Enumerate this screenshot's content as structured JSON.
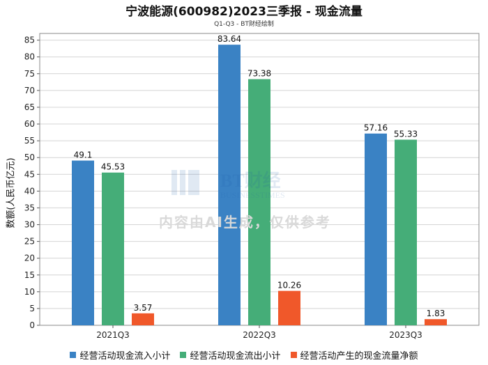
{
  "chart_data": {
    "type": "bar",
    "title": "宁波能源(600982)2023三季报 - 现金流量",
    "subtitle": "Q1-Q3 - BT财经绘制",
    "ylabel": "数额(人民币亿元)",
    "xlabel": "",
    "ylim": [
      0,
      87
    ],
    "yticks": [
      0,
      5,
      10,
      15,
      20,
      25,
      30,
      35,
      40,
      45,
      50,
      55,
      60,
      65,
      70,
      75,
      80,
      85
    ],
    "grid": true,
    "legend_position": "bottom",
    "categories": [
      "2021Q3",
      "2022Q3",
      "2023Q3"
    ],
    "series": [
      {
        "name": "经营活动现金流入小计",
        "color": "#3a82c4",
        "values": [
          49.1,
          83.64,
          57.16
        ],
        "labels": [
          "49.1",
          "83.64",
          "57.16"
        ]
      },
      {
        "name": "经营活动现金流出小计",
        "color": "#45ad78",
        "values": [
          45.53,
          73.38,
          55.33
        ],
        "labels": [
          "45.53",
          "73.38",
          "55.33"
        ]
      },
      {
        "name": "经营活动产生的现金流量净额",
        "color": "#f0582a",
        "values": [
          3.57,
          10.26,
          1.83
        ],
        "labels": [
          "3.57",
          "10.26",
          "1.83"
        ]
      }
    ]
  },
  "watermark": {
    "logo_text": "BT财经",
    "logo_sub": "BUSINESSTIMES",
    "notice": "内容由AI生成，仅供参考"
  }
}
